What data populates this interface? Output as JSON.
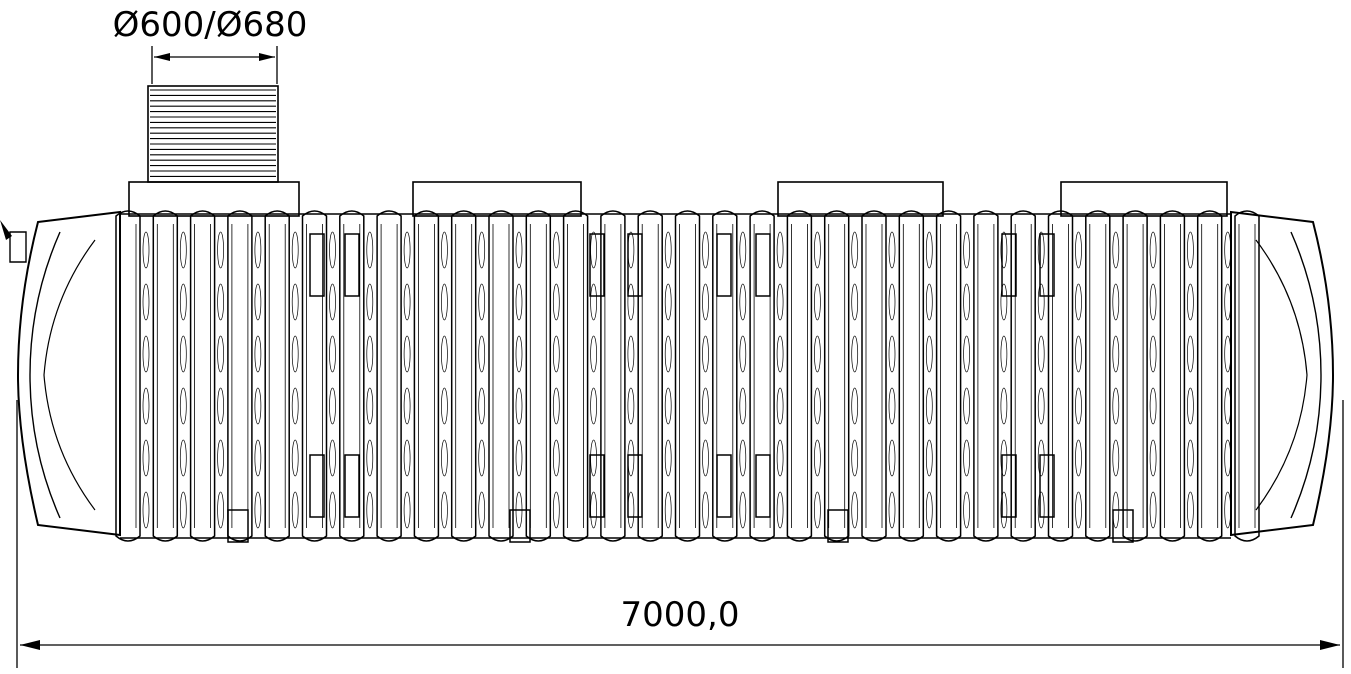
{
  "drawing": {
    "dimensions": {
      "neck_diameter": "Ø600/Ø680",
      "total_length": "7000,0"
    },
    "colors": {
      "line": "#000000",
      "background": "#ffffff"
    }
  }
}
